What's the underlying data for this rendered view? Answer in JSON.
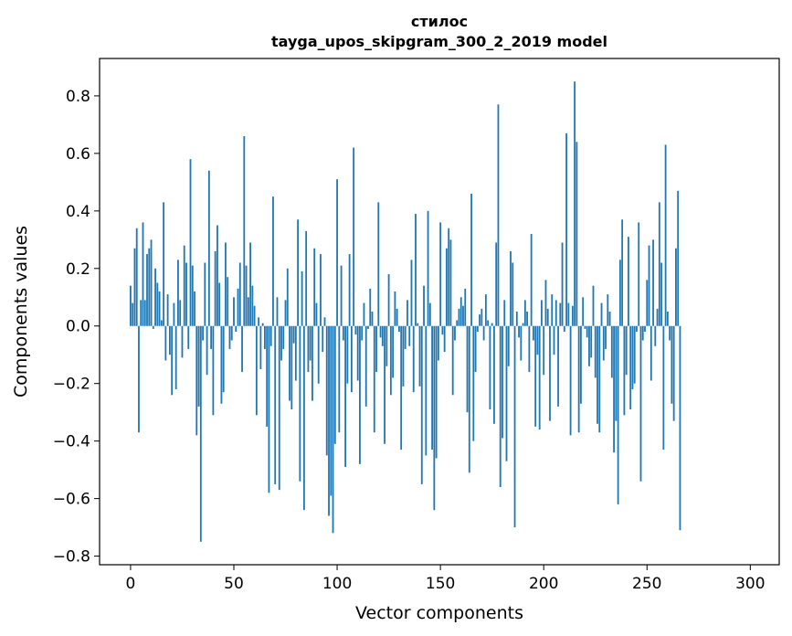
{
  "chart_data": {
    "type": "bar",
    "title": "стилос",
    "subtitle": "tayga_upos_skipgram_300_2_2019 model",
    "xlabel": "Vector components",
    "ylabel": "Components values",
    "xlim": [
      -15,
      314
    ],
    "ylim": [
      -0.83,
      0.93
    ],
    "xticks": [
      0,
      50,
      100,
      150,
      200,
      250,
      300
    ],
    "xtick_labels": [
      "0",
      "50",
      "100",
      "150",
      "200",
      "250",
      "300"
    ],
    "yticks": [
      -0.8,
      -0.6,
      -0.4,
      -0.2,
      0.0,
      0.2,
      0.4,
      0.6,
      0.8
    ],
    "ytick_labels": [
      "−0.8",
      "−0.6",
      "−0.4",
      "−0.2",
      "0.0",
      "0.2",
      "0.4",
      "0.6",
      "0.8"
    ],
    "grid": false,
    "bar_color": "#1f77b4",
    "values": [
      0.14,
      0.08,
      0.27,
      0.34,
      -0.37,
      0.09,
      0.36,
      0.09,
      0.25,
      0.27,
      0.3,
      -0.01,
      0.2,
      0.15,
      0.12,
      0.02,
      0.43,
      -0.12,
      0.11,
      -0.1,
      -0.24,
      0.08,
      -0.22,
      0.23,
      0.09,
      -0.11,
      0.28,
      0.22,
      -0.08,
      0.58,
      0.21,
      0.12,
      -0.38,
      -0.28,
      -0.75,
      -0.05,
      0.22,
      -0.17,
      0.54,
      -0.08,
      -0.31,
      0.26,
      0.35,
      0.15,
      -0.27,
      -0.23,
      0.29,
      0.17,
      -0.08,
      -0.05,
      0.1,
      -0.02,
      0.13,
      0.22,
      -0.16,
      0.66,
      0.21,
      0.1,
      0.29,
      0.14,
      0.07,
      -0.31,
      0.03,
      -0.15,
      0.01,
      -0.08,
      -0.35,
      -0.58,
      -0.07,
      0.45,
      -0.55,
      0.1,
      -0.57,
      -0.12,
      -0.08,
      0.09,
      0.2,
      -0.26,
      -0.29,
      -0.06,
      -0.19,
      0.37,
      -0.54,
      0.19,
      -0.64,
      0.33,
      -0.16,
      -0.12,
      -0.26,
      0.27,
      0.08,
      -0.2,
      0.25,
      -0.09,
      0.03,
      -0.45,
      -0.66,
      -0.59,
      -0.72,
      -0.41,
      0.51,
      -0.37,
      0.21,
      -0.05,
      -0.49,
      -0.2,
      0.25,
      -0.23,
      0.62,
      -0.03,
      -0.19,
      -0.48,
      -0.05,
      0.08,
      -0.28,
      -0.01,
      0.13,
      0.05,
      -0.37,
      -0.16,
      0.43,
      -0.04,
      -0.07,
      -0.41,
      -0.14,
      0.18,
      -0.24,
      -0.18,
      0.12,
      0.06,
      -0.02,
      -0.43,
      -0.21,
      -0.08,
      0.09,
      -0.07,
      0.23,
      -0.23,
      0.39,
      0.01,
      -0.21,
      -0.55,
      0.14,
      -0.45,
      0.4,
      0.08,
      -0.43,
      -0.64,
      -0.46,
      -0.12,
      0.36,
      -0.03,
      -0.09,
      0.27,
      0.34,
      0.3,
      -0.24,
      -0.05,
      0.02,
      0.06,
      0.1,
      0.07,
      0.13,
      -0.3,
      -0.51,
      0.46,
      -0.4,
      -0.16,
      -0.02,
      0.04,
      0.06,
      -0.05,
      0.11,
      0.02,
      -0.29,
      0.01,
      -0.34,
      0.29,
      0.77,
      -0.56,
      -0.39,
      0.09,
      -0.47,
      -0.14,
      0.26,
      0.22,
      -0.7,
      0.05,
      -0.04,
      -0.12,
      0.01,
      0.09,
      0.05,
      -0.16,
      0.32,
      -0.05,
      -0.35,
      -0.1,
      -0.36,
      0.09,
      -0.17,
      0.16,
      0.06,
      -0.33,
      0.11,
      -0.1,
      0.09,
      -0.28,
      0.08,
      0.29,
      -0.02,
      0.67,
      0.08,
      -0.38,
      0.07,
      0.85,
      0.64,
      -0.37,
      -0.27,
      0.1,
      -0.01,
      -0.04,
      -0.14,
      -0.11,
      0.14,
      -0.18,
      -0.34,
      -0.37,
      0.08,
      -0.12,
      -0.08,
      0.11,
      0.05,
      -0.18,
      -0.44,
      -0.33,
      -0.62,
      0.23,
      0.37,
      -0.31,
      -0.17,
      0.31,
      -0.29,
      -0.22,
      -0.2,
      -0.02,
      0.36,
      -0.54,
      -0.05,
      -0.02,
      0.16,
      0.28,
      -0.19,
      0.3,
      -0.07,
      0.06,
      0.43,
      0.22,
      -0.43,
      0.63,
      0.05,
      -0.05,
      -0.27,
      -0.33,
      0.27,
      0.47,
      -0.71
    ]
  }
}
